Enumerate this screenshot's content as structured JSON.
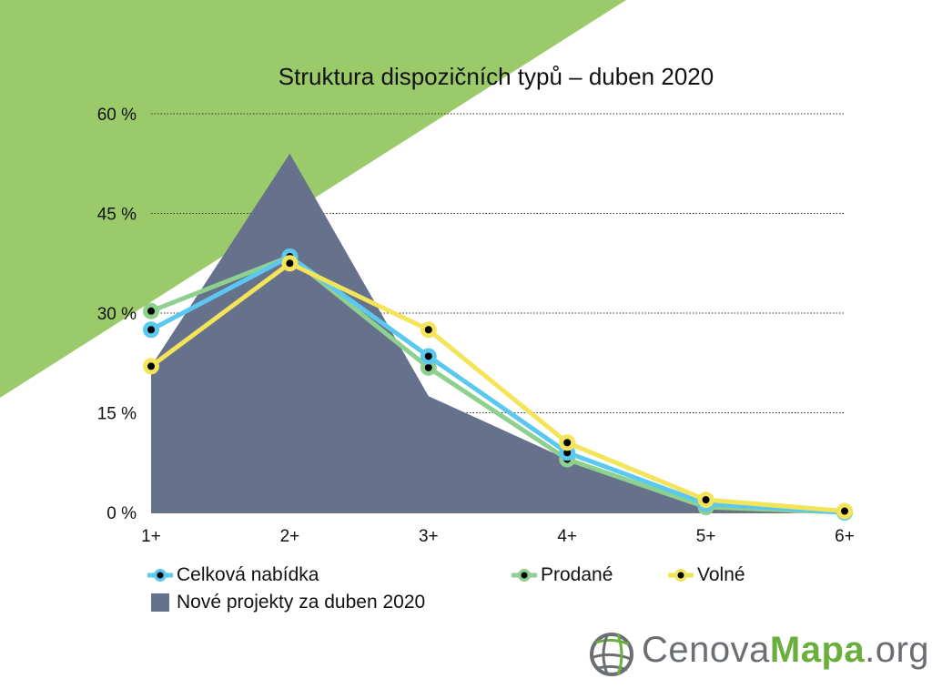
{
  "chart_data": {
    "type": "line",
    "title": "Struktura dispozičních typů – duben 2020",
    "categories": [
      "1+",
      "2+",
      "3+",
      "4+",
      "5+",
      "6+"
    ],
    "yticks": [
      "0 %",
      "15 %",
      "30 %",
      "45 %",
      "60 %"
    ],
    "ylim": [
      0,
      60
    ],
    "grid": true,
    "series": [
      {
        "name": "Celková nabídka",
        "kind": "line",
        "color": "#5bc8f0",
        "values": [
          27.5,
          38.5,
          23.5,
          9,
          1.3,
          0
        ]
      },
      {
        "name": "Prodané",
        "kind": "line",
        "color": "#8ed08e",
        "values": [
          30.3,
          38.5,
          21.8,
          8,
          0.8,
          0
        ]
      },
      {
        "name": "Volné",
        "kind": "line",
        "color": "#f3e45a",
        "values": [
          22,
          37.5,
          27.5,
          10.5,
          1.9,
          0.2
        ]
      },
      {
        "name": "Nové projekty za duben 2020",
        "kind": "area",
        "color": "#66718b",
        "values": [
          22,
          54,
          17.5,
          8,
          1,
          0
        ]
      }
    ]
  },
  "legend": {
    "total": "Celková nabídka",
    "sold": "Prodané",
    "free": "Volné",
    "new": "Nové projekty za duben 2020"
  },
  "logo": {
    "part1": "Cenova",
    "part2": "Mapa",
    "part3": ".org"
  },
  "colors": {
    "background_accent": "#9bca6a",
    "area": "#66718b",
    "total": "#5bc8f0",
    "sold": "#8ed08e",
    "free": "#f3e45a"
  }
}
